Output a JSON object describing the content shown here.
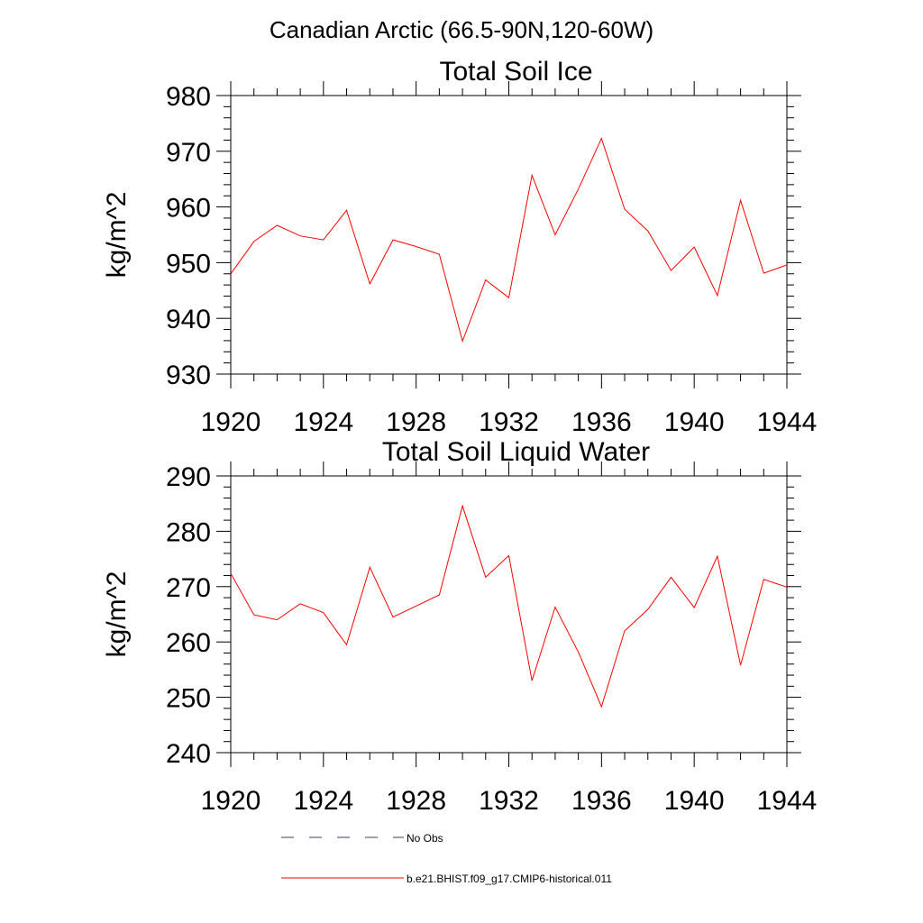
{
  "figure_title": "Canadian Arctic (66.5-90N,120-60W)",
  "chart_data": [
    {
      "type": "line",
      "title": "Total Soil Ice",
      "xlabel": "",
      "ylabel": "kg/m^2",
      "xlim": [
        1920,
        1944
      ],
      "ylim": [
        930,
        980
      ],
      "xticks": [
        1920,
        1924,
        1928,
        1932,
        1936,
        1940,
        1944
      ],
      "yticks": [
        930,
        940,
        950,
        960,
        970,
        980
      ],
      "x": [
        1920,
        1921,
        1922,
        1923,
        1924,
        1925,
        1926,
        1927,
        1928,
        1929,
        1930,
        1931,
        1932,
        1933,
        1934,
        1935,
        1936,
        1937,
        1938,
        1939,
        1940,
        1941,
        1942,
        1943,
        1944
      ],
      "series": [
        {
          "name": "b.e21.BHIST.f09_g17.CMIP6-historical.011",
          "color": "#ff0000",
          "values": [
            948.0,
            953.8,
            956.7,
            954.8,
            954.1,
            959.4,
            946.2,
            954.1,
            952.9,
            951.5,
            935.9,
            946.9,
            943.7,
            965.7,
            955.0,
            963.2,
            972.3,
            959.6,
            955.7,
            948.6,
            952.8,
            944.1,
            961.2,
            948.1,
            949.6
          ]
        }
      ],
      "grid": false
    },
    {
      "type": "line",
      "title": "Total Soil Liquid Water",
      "xlabel": "",
      "ylabel": "kg/m^2",
      "xlim": [
        1920,
        1944
      ],
      "ylim": [
        240,
        290
      ],
      "xticks": [
        1920,
        1924,
        1928,
        1932,
        1936,
        1940,
        1944
      ],
      "yticks": [
        240,
        250,
        260,
        270,
        280,
        290
      ],
      "x": [
        1920,
        1921,
        1922,
        1923,
        1924,
        1925,
        1926,
        1927,
        1928,
        1929,
        1930,
        1931,
        1932,
        1933,
        1934,
        1935,
        1936,
        1937,
        1938,
        1939,
        1940,
        1941,
        1942,
        1943,
        1944
      ],
      "series": [
        {
          "name": "b.e21.BHIST.f09_g17.CMIP6-historical.011",
          "color": "#ff0000",
          "values": [
            272.4,
            264.9,
            264.0,
            266.9,
            265.3,
            259.5,
            273.5,
            264.5,
            266.5,
            268.5,
            284.6,
            271.7,
            275.6,
            253.0,
            266.3,
            258.2,
            248.3,
            262.0,
            265.9,
            271.7,
            266.2,
            275.5,
            255.8,
            271.3,
            269.9
          ]
        }
      ],
      "grid": false
    }
  ],
  "legend": {
    "placement": "bottom",
    "entries": [
      {
        "label": "No Obs",
        "style": "dashed",
        "color": "#3c3c64"
      },
      {
        "label": "b.e21.BHIST.f09_g17.CMIP6-historical.011",
        "style": "solid",
        "color": "#ff0000"
      }
    ]
  }
}
